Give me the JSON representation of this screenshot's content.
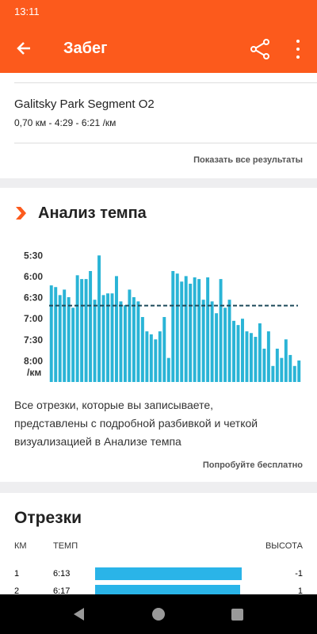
{
  "status_bar": {
    "time": "13:11"
  },
  "header": {
    "title": "Забег"
  },
  "segment": {
    "name": "Galitsky Park Segment O2",
    "details": "0,70 км - 4:29 - 6:21 /км",
    "link": "Показать все результаты"
  },
  "pace_analysis": {
    "title": "Анализ темпа",
    "description": [
      "Все отрезки, которые вы записываете,",
      "представлены с подробной разбивкой и четкой",
      "визуализацией в Анализе темпа"
    ],
    "link": "Попробуйте бесплатно"
  },
  "chart_data": {
    "type": "bar",
    "color": "#2ab4d6",
    "average_color": "#1d4a5a",
    "values": [
      6.21,
      6.25,
      6.44,
      6.31,
      6.49,
      6.74,
      5.97,
      6.06,
      6.06,
      5.87,
      6.55,
      5.5,
      6.44,
      6.4,
      6.4,
      5.99,
      6.59,
      6.68,
      6.31,
      6.49,
      6.59,
      6.96,
      7.3,
      7.37,
      7.49,
      7.3,
      6.96,
      7.93,
      5.87,
      5.93,
      6.12,
      5.99,
      6.17,
      6.02,
      6.06,
      6.55,
      6.02,
      6.59,
      6.87,
      6.06,
      6.74,
      6.55,
      7.05,
      7.15,
      7.0,
      7.3,
      7.34,
      7.43,
      7.11,
      7.71,
      7.3,
      8.12,
      7.71,
      7.93,
      7.49,
      7.86,
      8.12,
      7.99
    ],
    "average": 6.69,
    "ylim": [
      8.5,
      5.25
    ],
    "yticks": [
      {
        "value": 5.5,
        "label": "5:30"
      },
      {
        "value": 6,
        "label": "6:00"
      },
      {
        "value": 6.5,
        "label": "6:30"
      },
      {
        "value": 7,
        "label": "7:00"
      },
      {
        "value": 7.5,
        "label": "7:30"
      },
      {
        "value": 8,
        "label": "8:00"
      }
    ],
    "y_unit": "/км"
  },
  "splits": {
    "title": "Отрезки",
    "columns": [
      "КМ",
      "ТЕМП",
      "ВЫСОТА"
    ],
    "rows": [
      [
        "1",
        "6:13",
        "-1"
      ],
      [
        "2",
        "6:17",
        "1"
      ]
    ]
  }
}
